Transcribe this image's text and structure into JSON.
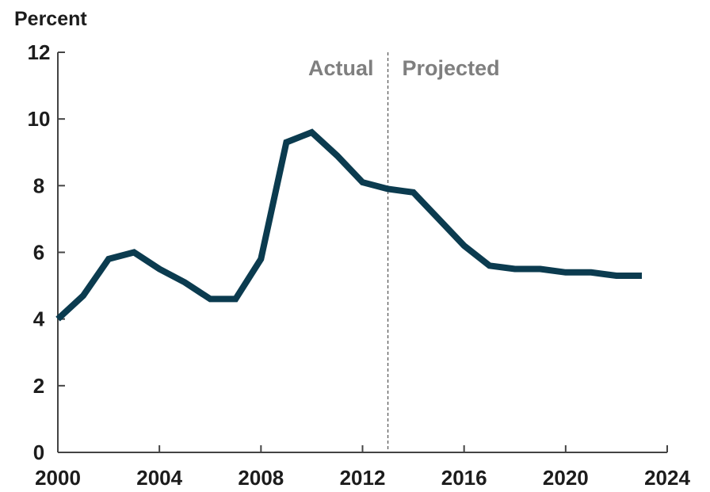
{
  "colors": {
    "line": "#0b3b4f",
    "axis": "#444444",
    "divider": "#666666",
    "period_label": "#7f7f7f",
    "text": "#1c1c1c"
  },
  "chart_data": {
    "type": "line",
    "title": "",
    "ylabel": "Percent",
    "xlabel": "",
    "xlim": [
      2000,
      2024
    ],
    "ylim": [
      0,
      12
    ],
    "x_ticks": [
      2000,
      2004,
      2008,
      2012,
      2016,
      2020,
      2024
    ],
    "y_ticks": [
      0,
      2,
      4,
      6,
      8,
      10,
      12
    ],
    "x_tick_labels": [
      "2000",
      "2004",
      "2008",
      "2012",
      "2016",
      "2020",
      "2024"
    ],
    "y_tick_labels": [
      "0",
      "2",
      "4",
      "6",
      "8",
      "10",
      "12"
    ],
    "grid": false,
    "annotations": {
      "actual_label": "Actual",
      "projected_label": "Projected",
      "divider_x": 2013
    },
    "series": [
      {
        "x": [
          2000,
          2001,
          2002,
          2003,
          2004,
          2005,
          2006,
          2007,
          2008,
          2009,
          2010,
          2011,
          2012,
          2013,
          2014,
          2015,
          2016,
          2017,
          2018,
          2019,
          2020,
          2021,
          2022,
          2023
        ],
        "values": [
          4.0,
          4.7,
          5.8,
          6.0,
          5.5,
          5.1,
          4.6,
          4.6,
          5.8,
          9.3,
          9.6,
          8.9,
          8.1,
          7.9,
          7.8,
          7.0,
          6.2,
          5.6,
          5.5,
          5.5,
          5.4,
          5.4,
          5.3,
          5.3
        ]
      }
    ]
  }
}
